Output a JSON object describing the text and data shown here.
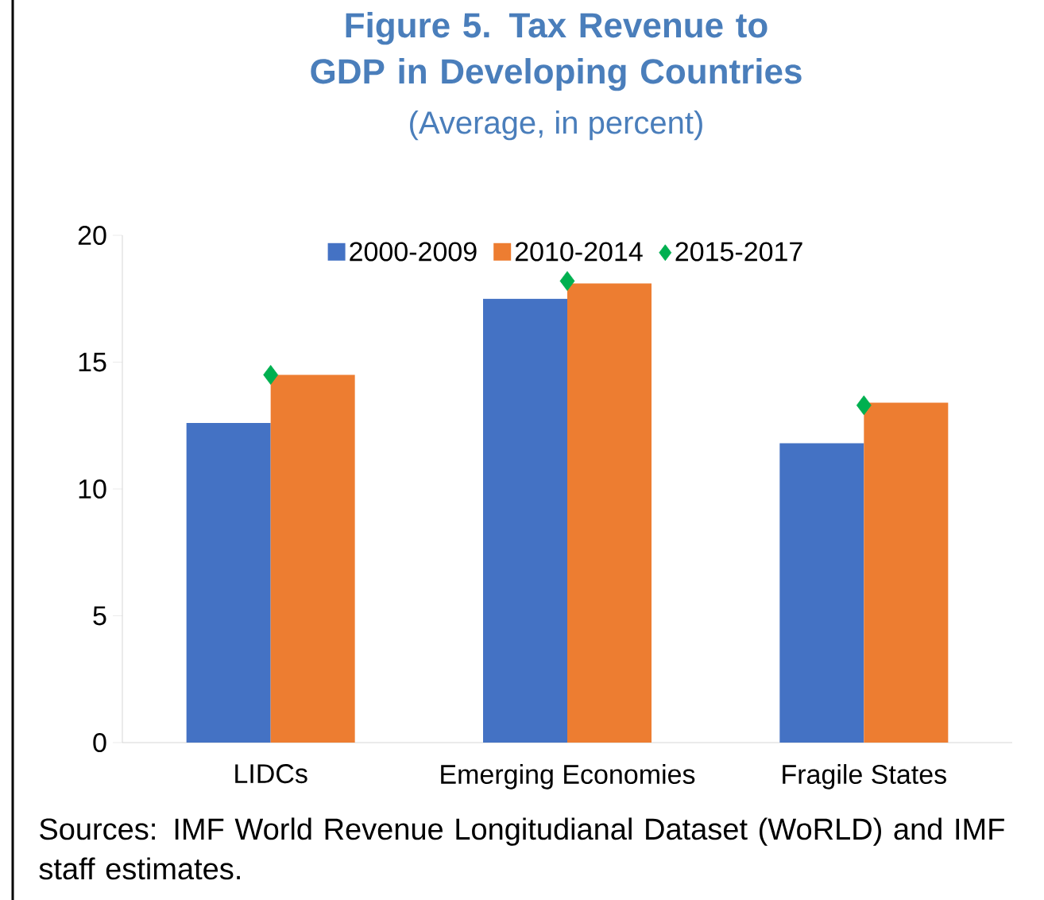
{
  "chart_data": {
    "type": "bar",
    "title": "Figure 5. Tax Revenue to GDP in Developing Countries",
    "subtitle": "(Average, in percent)",
    "categories": [
      "LIDCs",
      "Emerging Economies",
      "Fragile States"
    ],
    "series": [
      {
        "name": "2000-2009",
        "color": "#4472c4",
        "values": [
          12.6,
          17.5,
          11.8
        ]
      },
      {
        "name": "2010-2014",
        "color": "#ed7d31",
        "values": [
          14.5,
          18.1,
          13.4
        ]
      },
      {
        "name": "2015-2017",
        "type": "scatter",
        "marker": "diamond",
        "color": "#00b050",
        "x": [
          "LIDCs",
          "Emerging Economies",
          "Fragile States"
        ],
        "values": [
          14.5,
          18.2,
          13.3
        ]
      }
    ],
    "ylim": [
      0,
      20
    ],
    "yticks": [
      0,
      5,
      10,
      15,
      20
    ],
    "legend": "top",
    "annotations": [
      "Sources: IMF World Revenue Longitudianal Dataset (WoRLD) and IMF staff estimates."
    ]
  }
}
